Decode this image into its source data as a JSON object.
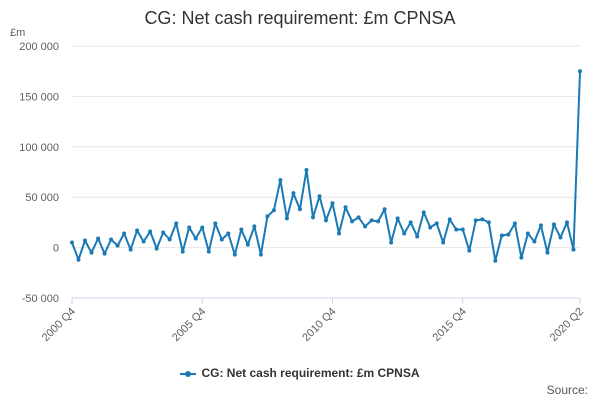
{
  "chart_data": {
    "type": "line",
    "title": "CG: Net cash requirement: £m CPNSA",
    "ylabel": "£m",
    "xlabel": "",
    "ylim": [
      -50000,
      200000
    ],
    "yticks": [
      "-50 000",
      "0",
      "50 000",
      "100 000",
      "150 000",
      "200 000"
    ],
    "ytick_values": [
      -50000,
      0,
      50000,
      100000,
      150000,
      200000
    ],
    "xtick_labels": [
      "2000 Q4",
      "2005 Q4",
      "2010 Q4",
      "2015 Q4",
      "2020 Q2"
    ],
    "xtick_indices": [
      0,
      20,
      40,
      60,
      78
    ],
    "grid": "horizontal",
    "legend_position": "bottom-center",
    "series_color": "#1a7ab6",
    "categories": [
      "2000 Q4",
      "2001 Q1",
      "2001 Q2",
      "2001 Q3",
      "2001 Q4",
      "2002 Q1",
      "2002 Q2",
      "2002 Q3",
      "2002 Q4",
      "2003 Q1",
      "2003 Q2",
      "2003 Q3",
      "2003 Q4",
      "2004 Q1",
      "2004 Q2",
      "2004 Q3",
      "2004 Q4",
      "2005 Q1",
      "2005 Q2",
      "2005 Q3",
      "2005 Q4",
      "2006 Q1",
      "2006 Q2",
      "2006 Q3",
      "2006 Q4",
      "2007 Q1",
      "2007 Q2",
      "2007 Q3",
      "2007 Q4",
      "2008 Q1",
      "2008 Q2",
      "2008 Q3",
      "2008 Q4",
      "2009 Q1",
      "2009 Q2",
      "2009 Q3",
      "2009 Q4",
      "2010 Q1",
      "2010 Q2",
      "2010 Q3",
      "2010 Q4",
      "2011 Q1",
      "2011 Q2",
      "2011 Q3",
      "2011 Q4",
      "2012 Q1",
      "2012 Q2",
      "2012 Q3",
      "2012 Q4",
      "2013 Q1",
      "2013 Q2",
      "2013 Q3",
      "2013 Q4",
      "2014 Q1",
      "2014 Q2",
      "2014 Q3",
      "2014 Q4",
      "2015 Q1",
      "2015 Q2",
      "2015 Q3",
      "2015 Q4",
      "2016 Q1",
      "2016 Q2",
      "2016 Q3",
      "2016 Q4",
      "2017 Q1",
      "2017 Q2",
      "2017 Q3",
      "2017 Q4",
      "2018 Q1",
      "2018 Q2",
      "2018 Q3",
      "2018 Q4",
      "2019 Q1",
      "2019 Q2",
      "2019 Q3",
      "2019 Q4",
      "2020 Q1",
      "2020 Q2"
    ],
    "series": [
      {
        "name": "CG: Net cash requirement: £m CPNSA",
        "values": [
          5000,
          -12000,
          7000,
          -5000,
          9000,
          -6000,
          8000,
          2000,
          14000,
          -2000,
          17000,
          6000,
          16000,
          -1000,
          15000,
          8000,
          24000,
          -4000,
          20000,
          9000,
          20000,
          -4000,
          24000,
          8000,
          14000,
          -7000,
          18000,
          3000,
          21000,
          -7000,
          31000,
          37000,
          67000,
          29000,
          54000,
          38000,
          77000,
          30000,
          51000,
          27000,
          44000,
          14000,
          40000,
          26000,
          30000,
          21000,
          27000,
          26000,
          38000,
          5000,
          29000,
          14000,
          25000,
          11000,
          35000,
          20000,
          24000,
          5000,
          28000,
          18000,
          18000,
          -3000,
          27000,
          28000,
          25000,
          -13000,
          12000,
          13000,
          24000,
          -10000,
          14000,
          6000,
          22000,
          -5000,
          23000,
          10000,
          25000,
          -2000,
          175000
        ]
      }
    ]
  },
  "legend": {
    "label": "CG: Net cash requirement: £m CPNSA"
  },
  "source_label": "Source:"
}
